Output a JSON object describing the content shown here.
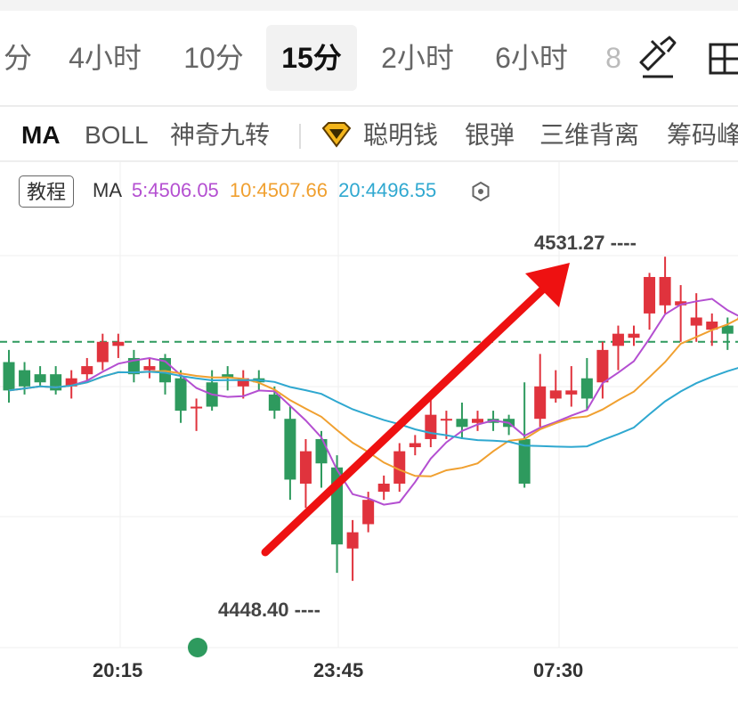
{
  "period_tabs": [
    "分",
    "4小时",
    "10分",
    "15分",
    "2小时",
    "6小时",
    "8"
  ],
  "active_period": "15分",
  "indicator_tabs": [
    "MA",
    "BOLL",
    "神奇九转",
    "聪明钱",
    "银弹",
    "三维背离",
    "筹码峰"
  ],
  "tutorial_label": "教程",
  "ma_legend": {
    "name": "MA",
    "ma5": "5:4506.05",
    "ma10": "10:4507.66",
    "ma20": "20:4496.55"
  },
  "colors": {
    "ma5": "#b44fd1",
    "ma10": "#f0a030",
    "ma20": "#2fa8d0",
    "up": "#e0333d",
    "down": "#2e9a5e",
    "arrow": "#ee1111",
    "dashed_line": "#2e9a5e"
  },
  "max_label": "4531.27 ----",
  "min_label": "4448.40 ----",
  "time_axis": [
    "20:15",
    "23:45",
    "07:30"
  ],
  "icons": {
    "toolbar_left": "drawing-tool-icon",
    "toolbar_right": "layout-icon",
    "legend_settings": "settings-icon",
    "indicator_badge": "diamond-badge-icon",
    "marker": "green-dot-icon"
  },
  "chart_data": {
    "type": "candlestick",
    "y_range": [
      4440,
      4540
    ],
    "max_price": 4531.27,
    "min_price": 4448.4,
    "candles": [
      [
        4505,
        4498,
        4508,
        4495
      ],
      [
        4503,
        4499,
        4505,
        4497
      ],
      [
        4502,
        4500,
        4504,
        4499
      ],
      [
        4502,
        4498,
        4504,
        4497
      ],
      [
        4499,
        4501,
        4503,
        4496
      ],
      [
        4502,
        4504,
        4506,
        4500
      ],
      [
        4505,
        4510,
        4512,
        4503
      ],
      [
        4509,
        4510,
        4512,
        4506
      ],
      [
        4506,
        4502,
        4508,
        4500
      ],
      [
        4503,
        4504,
        4506,
        4501
      ],
      [
        4506,
        4500,
        4507,
        4497
      ],
      [
        4501,
        4493,
        4503,
        4490
      ],
      [
        4494,
        4494,
        4496,
        4488
      ],
      [
        4500,
        4494,
        4503,
        4493
      ],
      [
        4502,
        4501,
        4504,
        4498
      ],
      [
        4499,
        4501,
        4503,
        4496
      ],
      [
        4501,
        4500,
        4503,
        4498
      ],
      [
        4497,
        4493,
        4499,
        4491
      ],
      [
        4491,
        4476,
        4494,
        4471
      ],
      [
        4475,
        4483,
        4486,
        4469
      ],
      [
        4486,
        4480,
        4488,
        4474
      ],
      [
        4479,
        4460,
        4482,
        4453
      ],
      [
        4459,
        4463,
        4466,
        4451
      ],
      [
        4465,
        4471,
        4473,
        4463
      ],
      [
        4473,
        4475,
        4477,
        4471
      ],
      [
        4475,
        4483,
        4485,
        4473
      ],
      [
        4484,
        4485,
        4487,
        4482
      ],
      [
        4486,
        4492,
        4496,
        4484
      ],
      [
        4491,
        4491,
        4493,
        4486
      ],
      [
        4491,
        4489,
        4495,
        4486
      ],
      [
        4490,
        4491,
        4493,
        4488
      ],
      [
        4491,
        4490,
        4493,
        4488
      ],
      [
        4491,
        4489,
        4492,
        4487
      ],
      [
        4486,
        4475,
        4500,
        4474
      ],
      [
        4491,
        4499,
        4507,
        4489
      ],
      [
        4496,
        4498,
        4503,
        4495
      ],
      [
        4497,
        4498,
        4504,
        4494
      ],
      [
        4501,
        4496,
        4506,
        4493
      ],
      [
        4500,
        4508,
        4510,
        4496
      ],
      [
        4509,
        4512,
        4514,
        4503
      ],
      [
        4511,
        4512,
        4514,
        4509
      ],
      [
        4517,
        4526,
        4527,
        4513
      ],
      [
        4519,
        4526,
        4531,
        4517
      ],
      [
        4519,
        4520,
        4524,
        4510
      ],
      [
        4514,
        4516,
        4522,
        4510
      ],
      [
        4513,
        4515,
        4517,
        4509
      ],
      [
        4514,
        4512,
        4516,
        4508
      ],
      [
        4516,
        4516,
        4518,
        4511
      ]
    ],
    "dashed_level": 4510,
    "annotations": [
      "max 4531.27",
      "min 4448.40",
      "red trend arrow pointing up"
    ]
  }
}
